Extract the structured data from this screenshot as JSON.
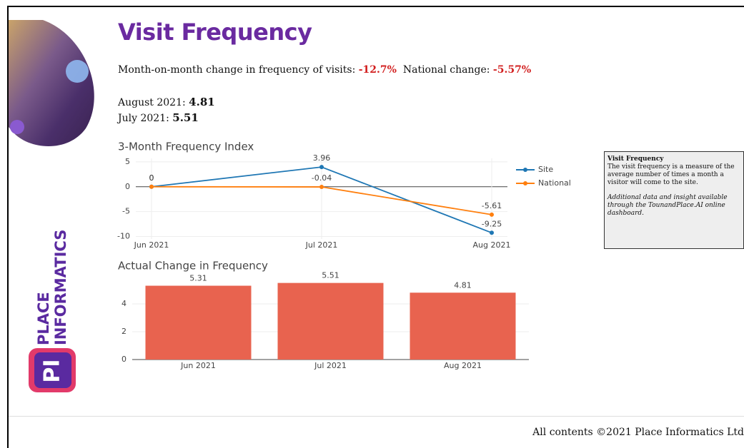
{
  "title": "Visit Frequency",
  "summary": {
    "mom_label": "Month-on-month change in frequency of visits:",
    "mom_value": "-12.7%",
    "national_label": "National change:",
    "national_value": "-5.57%"
  },
  "months": [
    {
      "label": "August 2021:",
      "value": "4.81"
    },
    {
      "label": "July 2021:",
      "value": "5.51"
    }
  ],
  "logo": {
    "line1": "PLACE",
    "line2": "INFORMATICS",
    "mark": "PI"
  },
  "chart_data": [
    {
      "type": "line",
      "title": "3-Month Frequency Index",
      "categories": [
        "Jun 2021",
        "Jul 2021",
        "Aug 2021"
      ],
      "series": [
        {
          "name": "Site",
          "color": "#1f77b4",
          "values": [
            0,
            3.96,
            -9.25
          ]
        },
        {
          "name": "National",
          "color": "#ff7f0e",
          "values": [
            0,
            -0.04,
            -5.61
          ]
        }
      ],
      "ylim": [
        -10.5,
        5.7
      ],
      "yticks": [
        -10,
        -5,
        0,
        5
      ],
      "grid": true,
      "legend": "right"
    },
    {
      "type": "bar",
      "title": "Actual Change in Frequency",
      "categories": [
        "Jun 2021",
        "Jul 2021",
        "Aug 2021"
      ],
      "values": [
        5.31,
        5.51,
        4.81
      ],
      "color": "#e8634f",
      "ylim": [
        0,
        5.85
      ],
      "yticks": [
        0,
        2,
        4
      ],
      "grid": true
    }
  ],
  "info_box": {
    "title": "Visit Frequency",
    "text": "The visit frequency is a measure of the average number of times a month a visitor will come to the site.",
    "note": "Additional data and insight available through the TounandPlace.AI online dashboard."
  },
  "footer": "All contents ©2021 Place Informatics Ltd"
}
